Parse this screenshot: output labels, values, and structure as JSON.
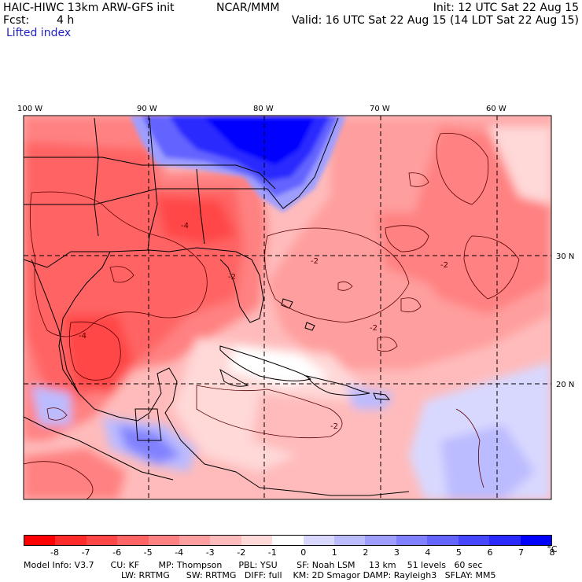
{
  "header": {
    "model_title": "HAIC-HIWC 13km ARW-GFS init",
    "center": "NCAR/MMM",
    "init": "Init: 12 UTC Sat 22 Aug 15",
    "fcst_label": "Fcst:",
    "fcst_value": "4 h",
    "valid": "Valid: 16 UTC Sat 22 Aug 15 (14 LDT Sat 22 Aug 15)",
    "field": "Lifted index"
  },
  "map": {
    "lon_labels": [
      "100 W",
      "90 W",
      "80 W",
      "70 W",
      "60 W"
    ],
    "lat_labels": [
      "30 N",
      "20 N"
    ],
    "contour_labels": [
      "-2",
      "-2",
      "-2",
      "-2",
      "-4",
      "-4",
      "-2"
    ]
  },
  "colorbar": {
    "colors": [
      "#ff0000",
      "#ff2a2a",
      "#ff4747",
      "#ff6464",
      "#ff8181",
      "#ff9e9e",
      "#ffbbbb",
      "#ffd8d8",
      "#ffffff",
      "#d8d8ff",
      "#bbbbff",
      "#9e9eff",
      "#8181ff",
      "#6464ff",
      "#4747ff",
      "#2a2aff",
      "#0000ff"
    ],
    "labels": [
      "-8",
      "-7",
      "-6",
      "-5",
      "-4",
      "-3",
      "-2",
      "-1",
      "0",
      "1",
      "2",
      "3",
      "4",
      "5",
      "6",
      "7",
      "8"
    ],
    "unit": "°C"
  },
  "footer": {
    "line1": "Model Info: V3.7      CU: KF       MP: Thompson      PBL: YSU       SF: Noah LSM     13 km    51 levels   60 sec",
    "line2": "LW: RRTMG      SW: RRTMG   DIFF: full    KM: 2D Smagor DAMP: Rayleigh3   SFLAY: MM5"
  }
}
